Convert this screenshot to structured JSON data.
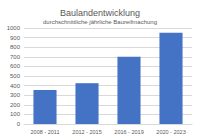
{
  "chart_data": {
    "type": "bar",
    "title": "Baulandentwicklung",
    "subtitle": "durchschnittliche jährliche Baureifmachung",
    "categories": [
      "2008 - 2011",
      "2012 - 2015",
      "2016 - 2019",
      "2020 - 2023"
    ],
    "values": [
      355,
      425,
      700,
      950
    ],
    "color": "#4472c4",
    "ylim": [
      0,
      1000
    ],
    "yticks": [
      0,
      100,
      200,
      300,
      400,
      500,
      600,
      700,
      800,
      900,
      1000
    ],
    "grid": true
  }
}
